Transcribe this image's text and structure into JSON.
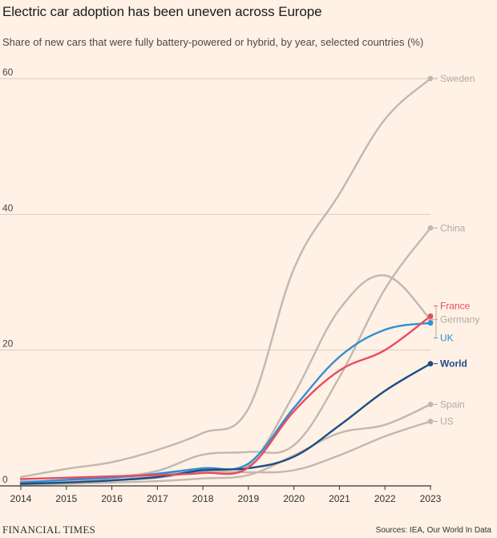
{
  "header": {
    "title": "Electric car adoption has been uneven across Europe",
    "subtitle": "Share of new cars that were fully battery-powered or hybrid, by year, selected countries (%)"
  },
  "footer": {
    "brand": "FINANCIAL TIMES",
    "source": "Sources: IEA, Our World In Data"
  },
  "chart_data": {
    "type": "line",
    "title": "Electric car adoption has been uneven across Europe",
    "subtitle": "Share of new cars that were fully battery-powered or hybrid, by year, selected countries (%)",
    "xlabel": "",
    "ylabel": "",
    "xlim": [
      2014,
      2023
    ],
    "ylim": [
      0,
      60
    ],
    "yticks": [
      0,
      20,
      40,
      60
    ],
    "x": [
      2014,
      2015,
      2016,
      2017,
      2018,
      2019,
      2020,
      2021,
      2022,
      2023
    ],
    "grid": "horizontal",
    "legend": "direct labels at right end of lines",
    "series": [
      {
        "name": "Sweden",
        "color": "#c2b8b0",
        "label_color": "#b3a9a2",
        "values": [
          1.3,
          2.5,
          3.5,
          5.3,
          7.8,
          11.4,
          32,
          43,
          54,
          60
        ]
      },
      {
        "name": "China",
        "color": "#c2b8b0",
        "label_color": "#b3a9a2",
        "values": [
          0.3,
          0.9,
          1.3,
          2.2,
          4.6,
          5.0,
          6.0,
          16,
          29,
          38
        ]
      },
      {
        "name": "Germany",
        "color": "#c2b8b0",
        "label_color": "#b3a9a2",
        "values": [
          0.4,
          0.7,
          0.8,
          1.6,
          2.1,
          3.0,
          13.5,
          26,
          31,
          24.5
        ]
      },
      {
        "name": "Spain",
        "color": "#c2b8b0",
        "label_color": "#b3a9a2",
        "values": [
          0.1,
          0.3,
          0.5,
          0.7,
          1.1,
          1.6,
          4.5,
          7.8,
          9,
          12
        ]
      },
      {
        "name": "US",
        "color": "#c2b8b0",
        "label_color": "#b3a9a2",
        "values": [
          0.7,
          0.7,
          0.9,
          1.2,
          2.1,
          2.0,
          2.3,
          4.5,
          7.3,
          9.5
        ]
      },
      {
        "name": "UK",
        "color": "#2f8fd4",
        "label_color": "#2f8fd4",
        "values": [
          0.5,
          0.9,
          1.2,
          1.8,
          2.6,
          3.3,
          11.5,
          19,
          23,
          24
        ]
      },
      {
        "name": "World",
        "color": "#1e4d86",
        "label_color": "#1e4d86",
        "values": [
          0.3,
          0.5,
          0.8,
          1.3,
          2.3,
          2.6,
          4.3,
          8.9,
          14,
          18
        ]
      },
      {
        "name": "France",
        "color": "#eb4a5e",
        "label_color": "#eb4a5e",
        "values": [
          1.0,
          1.2,
          1.4,
          1.6,
          1.9,
          2.7,
          11,
          17,
          20,
          25
        ]
      }
    ]
  }
}
